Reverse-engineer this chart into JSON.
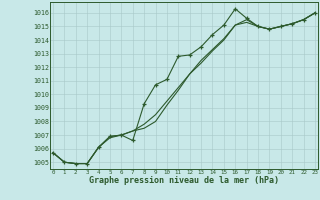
{
  "bg_color": "#c8e8e8",
  "grid_color": "#a8c8c8",
  "line_color": "#2d5a2d",
  "xlabel": "Graphe pression niveau de la mer (hPa)",
  "ylim": [
    1004.5,
    1016.8
  ],
  "xlim": [
    -0.3,
    23.3
  ],
  "xticks": [
    0,
    1,
    2,
    3,
    4,
    5,
    6,
    7,
    8,
    9,
    10,
    11,
    12,
    13,
    14,
    15,
    16,
    17,
    18,
    19,
    20,
    21,
    22,
    23
  ],
  "yticks": [
    1005,
    1006,
    1007,
    1008,
    1009,
    1010,
    1011,
    1012,
    1013,
    1014,
    1015,
    1016
  ],
  "line1_x": [
    0,
    1,
    2,
    3,
    4,
    5,
    6,
    7,
    8,
    9,
    10,
    11,
    12,
    13,
    14,
    15,
    16,
    17,
    18,
    19,
    20,
    21,
    22,
    23
  ],
  "line1_y": [
    1005.7,
    1005.0,
    1004.9,
    1004.9,
    1006.1,
    1006.9,
    1007.0,
    1006.6,
    1009.3,
    1010.7,
    1011.1,
    1012.8,
    1012.9,
    1013.5,
    1014.4,
    1015.1,
    1016.3,
    1015.6,
    1015.0,
    1014.8,
    1015.0,
    1015.2,
    1015.5,
    1016.0
  ],
  "line2_x": [
    0,
    1,
    2,
    3,
    4,
    5,
    6,
    7,
    8,
    9,
    10,
    11,
    12,
    13,
    14,
    15,
    16,
    17,
    18,
    19,
    20,
    21,
    22,
    23
  ],
  "line2_y": [
    1005.7,
    1005.0,
    1004.9,
    1004.9,
    1006.1,
    1006.9,
    1007.0,
    1007.3,
    1007.5,
    1008.0,
    1009.2,
    1010.3,
    1011.5,
    1012.5,
    1013.3,
    1014.1,
    1015.1,
    1015.5,
    1015.0,
    1014.8,
    1015.0,
    1015.2,
    1015.5,
    1016.0
  ],
  "line3_x": [
    0,
    1,
    2,
    3,
    4,
    5,
    6,
    7,
    8,
    9,
    10,
    11,
    12,
    13,
    14,
    15,
    16,
    17,
    18,
    19,
    20,
    21,
    22,
    23
  ],
  "line3_y": [
    1005.7,
    1005.0,
    1004.9,
    1004.9,
    1006.1,
    1006.8,
    1007.0,
    1007.3,
    1007.8,
    1008.5,
    1009.5,
    1010.5,
    1011.5,
    1012.3,
    1013.2,
    1014.0,
    1015.1,
    1015.3,
    1015.0,
    1014.8,
    1015.0,
    1015.2,
    1015.5,
    1016.0
  ]
}
